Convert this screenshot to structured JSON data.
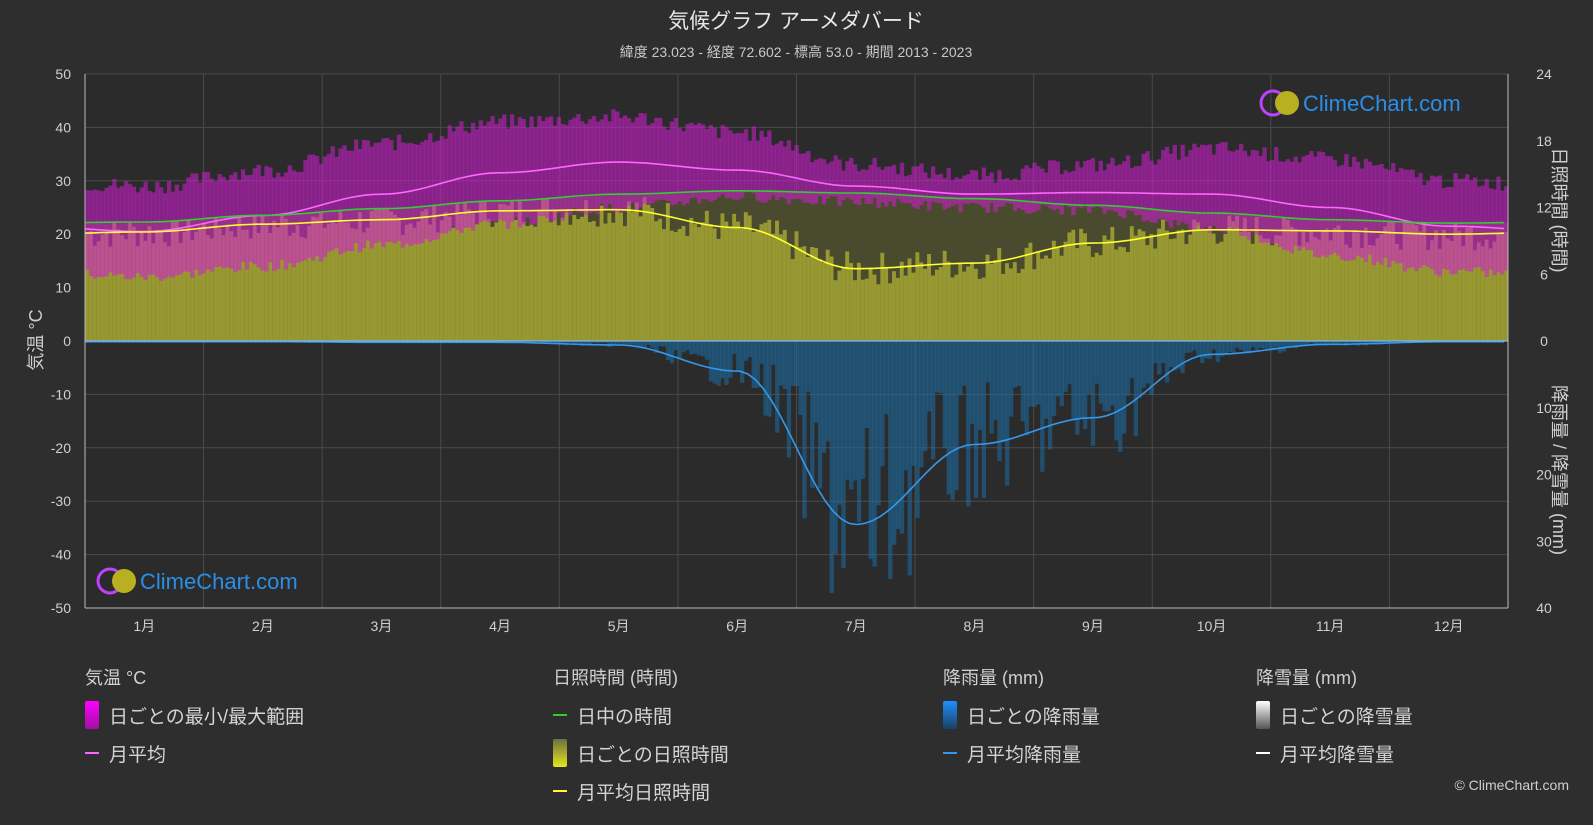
{
  "title": "気候グラフ アーメダバード",
  "subtitle": "緯度 23.023 - 経度 72.602 - 標高 53.0 - 期間 2013 - 2023",
  "axes": {
    "left_label": "気温 °C",
    "right_top_label": "日照時間 (時間)",
    "right_bottom_label": "降雨量 / 降雪量 (mm)"
  },
  "watermark": "ClimeChart.com",
  "copyright": "© ClimeChart.com",
  "colors": {
    "background": "#2e2e2e",
    "temp_range": "#d21ed2",
    "temp_avg": "#ff66ff",
    "daylight": "#33cc33",
    "sunshine_fill": "#a6a632",
    "sunshine_avg": "#ffff33",
    "rain": "#1e6ea6",
    "rain_avg": "#3399ee",
    "snow": "#ffffff",
    "watermark": "#2a8fe8"
  },
  "legend": {
    "temp": {
      "title": "気温 °C",
      "range_label": "日ごとの最小/最大範囲",
      "avg_label": "月平均"
    },
    "sun": {
      "title": "日照時間 (時間)",
      "daylight_label": "日中の時間",
      "daily_label": "日ごとの日照時間",
      "avg_label": "月平均日照時間"
    },
    "rain": {
      "title": "降雨量 (mm)",
      "daily_label": "日ごとの降雨量",
      "avg_label": "月平均降雨量"
    },
    "snow": {
      "title": "降雪量 (mm)",
      "daily_label": "日ごとの降雪量",
      "avg_label": "月平均降雪量"
    }
  },
  "chart_data": {
    "type": "line",
    "months": [
      "1月",
      "2月",
      "3月",
      "4月",
      "5月",
      "6月",
      "7月",
      "8月",
      "9月",
      "10月",
      "11月",
      "12月"
    ],
    "temp_axis": {
      "min": -50,
      "max": 50,
      "ticks": [
        50,
        40,
        30,
        20,
        10,
        0,
        -10,
        -20,
        -30,
        -40,
        -50
      ]
    },
    "sun_axis": {
      "min": 0,
      "max": 24,
      "ticks": [
        24,
        18,
        12,
        6,
        0
      ]
    },
    "precip_axis": {
      "min": 0,
      "max": 40,
      "ticks": [
        0,
        10,
        20,
        30,
        40
      ]
    },
    "series": [
      {
        "name": "月平均",
        "axis": "temp",
        "values": [
          20.5,
          23.5,
          27.5,
          31.5,
          33.5,
          32.0,
          29.0,
          27.5,
          27.8,
          27.5,
          25.0,
          21.5
        ]
      },
      {
        "name": "日中の時間",
        "axis": "sun",
        "values": [
          10.7,
          11.3,
          11.9,
          12.6,
          13.2,
          13.5,
          13.3,
          12.8,
          12.2,
          11.5,
          10.9,
          10.6
        ]
      },
      {
        "name": "月平均日照時間",
        "axis": "sun",
        "values": [
          9.8,
          10.5,
          10.9,
          11.7,
          11.8,
          10.2,
          6.5,
          7.0,
          8.8,
          10.0,
          9.9,
          9.6
        ]
      },
      {
        "name": "月平均降雨量",
        "axis": "precip",
        "values": [
          0.1,
          0.1,
          0.2,
          0.2,
          0.6,
          4.5,
          27.5,
          15.5,
          11.5,
          2.0,
          0.5,
          0.1
        ]
      },
      {
        "name": "月平均降雪量",
        "axis": "precip",
        "values": [
          0,
          0,
          0,
          0,
          0,
          0,
          0,
          0,
          0,
          0,
          0,
          0
        ]
      }
    ],
    "temp_range": {
      "min": [
        12,
        14,
        18,
        22,
        25,
        27,
        26,
        25,
        24.5,
        21,
        16,
        13
      ],
      "max": [
        29,
        32,
        37,
        41,
        42,
        39,
        33,
        31,
        33,
        36,
        34,
        30
      ]
    },
    "grid": true
  }
}
